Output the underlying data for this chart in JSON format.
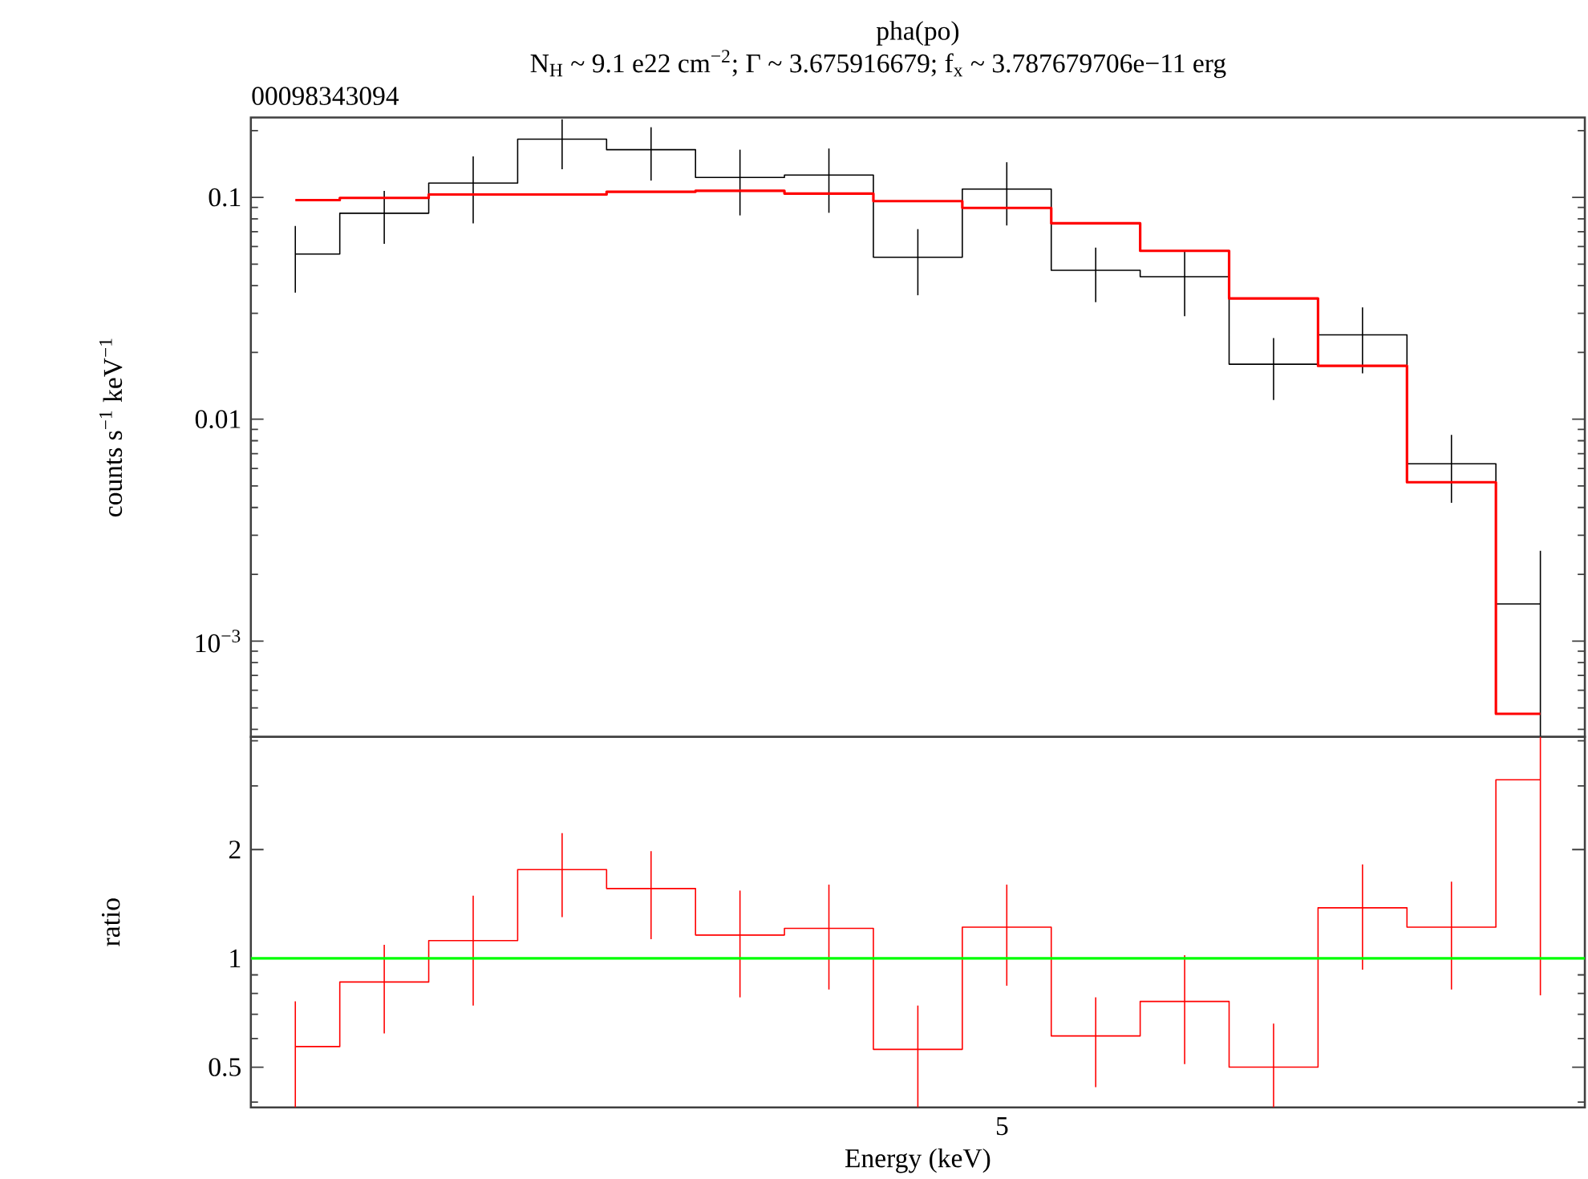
{
  "chart_data": [
    {
      "type": "step",
      "title": "pha(po)",
      "subtitle": "N$_{H}$ ~ 9.1 e22 cm$^{−2}$; Γ ~ 3.675916679; f$_{x}$ ~ 3.787679706e−11 erg",
      "ylabel": "counts s$^{−1}$ keV$^{−1}$",
      "annotations": [
        "00098343094"
      ],
      "categories": [
        null,
        null,
        null,
        null,
        null,
        null,
        null,
        null,
        null,
        null,
        null,
        null,
        null,
        null,
        null
      ],
      "series": [
        {
          "color": "#000000",
          "values": [
            0.0555,
            0.0848,
            0.116,
            0.183,
            0.164,
            0.123,
            0.126,
            0.0537,
            0.109,
            0.0469,
            0.0439,
            0.0177,
            0.024,
            0.0063,
            0.00147
          ],
          "errors": [
            [
              0.0372,
              0.0743
            ],
            [
              0.0617,
              0.107
            ],
            [
              0.0764,
              0.153
            ],
            [
              0.134,
              0.225
            ],
            [
              0.119,
              0.207
            ],
            [
              0.0829,
              0.164
            ],
            [
              0.0852,
              0.166
            ],
            [
              0.0362,
              0.0719
            ],
            [
              0.0747,
              0.144
            ],
            [
              0.0337,
              0.0593
            ],
            [
              0.0291,
              0.0577
            ],
            [
              0.0122,
              0.0232
            ],
            [
              0.0161,
              0.0319
            ],
            [
              0.0042,
              0.0085
            ],
            [
              0.00037,
              0.00255
            ]
          ]
        },
        {
          "color": "#ff0000",
          "values": [
            0.0972,
            0.0994,
            0.103,
            0.103,
            0.106,
            0.107,
            0.104,
            0.0962,
            0.0896,
            0.0764,
            0.0574,
            0.035,
            0.0174,
            0.0052,
            0.00047
          ]
        }
      ],
      "ylim": [
        0.00037,
        0.229
      ],
      "yticks": [
        {
          "value": 0.0004,
          "label": null
        },
        {
          "value": 0.0005,
          "label": null
        },
        {
          "value": 0.0006,
          "label": null
        },
        {
          "value": 0.0007,
          "label": null
        },
        {
          "value": 0.0008,
          "label": null
        },
        {
          "value": 0.0009,
          "label": null
        },
        {
          "value": 0.001,
          "label": "10$^{−3}$"
        },
        {
          "value": 0.002,
          "label": null
        },
        {
          "value": 0.003,
          "label": null
        },
        {
          "value": 0.004,
          "label": null
        },
        {
          "value": 0.005,
          "label": null
        },
        {
          "value": 0.006,
          "label": null
        },
        {
          "value": 0.007,
          "label": null
        },
        {
          "value": 0.008,
          "label": null
        },
        {
          "value": 0.009,
          "label": null
        },
        0.01,
        {
          "value": 0.02,
          "label": null
        },
        {
          "value": 0.03,
          "label": null
        },
        {
          "value": 0.04,
          "label": null
        },
        {
          "value": 0.05,
          "label": null
        },
        {
          "value": 0.06,
          "label": null
        },
        {
          "value": 0.07,
          "label": null
        },
        {
          "value": 0.08,
          "label": null
        },
        {
          "value": 0.09,
          "label": null
        },
        0.1,
        {
          "value": 0.2,
          "label": null
        }
      ],
      "log": "y"
    },
    {
      "type": "step",
      "xlabel": "Energy (keV)",
      "ylabel": "ratio",
      "annotations": [
        "5"
      ],
      "categories": [
        null,
        null,
        null,
        null,
        null,
        null,
        null,
        null,
        null,
        null,
        null,
        null,
        null,
        null,
        null
      ],
      "series": [
        {
          "color": "#ff0000",
          "values": [
            0.57,
            0.86,
            1.12,
            1.76,
            1.56,
            1.16,
            1.21,
            0.56,
            1.22,
            0.61,
            0.76,
            0.5,
            1.38,
            1.22,
            3.12
          ],
          "errors": [
            [
              0.387,
              0.76
            ],
            [
              0.62,
              1.09
            ],
            [
              0.74,
              1.49
            ],
            [
              1.3,
              2.22
            ],
            [
              1.13,
              1.98
            ],
            [
              0.78,
              1.54
            ],
            [
              0.82,
              1.6
            ],
            [
              0.387,
              0.74
            ],
            [
              0.84,
              1.6
            ],
            [
              0.44,
              0.78
            ],
            [
              0.51,
              1.02
            ],
            [
              0.387,
              0.66
            ],
            [
              0.93,
              1.82
            ],
            [
              0.82,
              1.63
            ],
            [
              0.79,
              4.1
            ]
          ]
        }
      ],
      "ref_lines": [
        {
          "axis": "y",
          "value": 1,
          "color": "#00ff00"
        }
      ],
      "ylim": [
        0.387,
        4.1
      ],
      "yticks": [
        {
          "value": 0.4,
          "label": null
        },
        0.5,
        {
          "value": 0.6,
          "label": null
        },
        {
          "value": 0.7,
          "label": null
        },
        {
          "value": 0.8,
          "label": null
        },
        {
          "value": 0.9,
          "label": null
        },
        1,
        2,
        {
          "value": 3,
          "label": null
        },
        {
          "value": 4,
          "label": null
        }
      ],
      "log": "y"
    }
  ]
}
